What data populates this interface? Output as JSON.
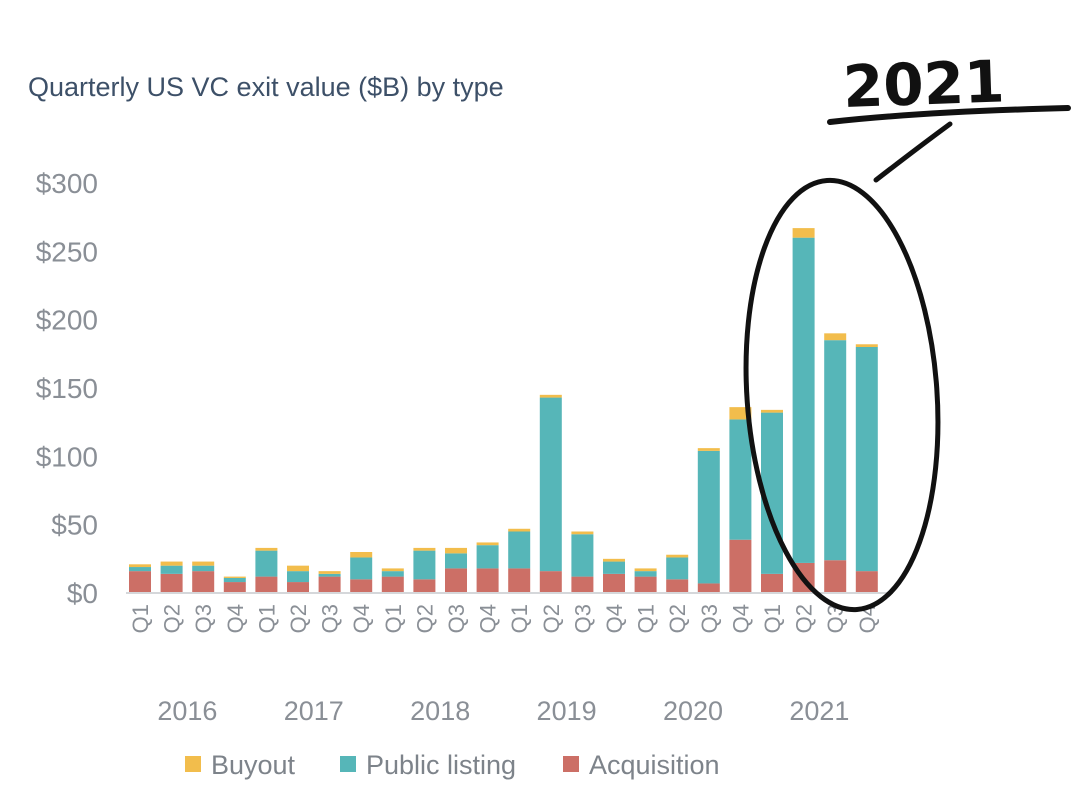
{
  "chart_data": {
    "type": "bar",
    "stacked": true,
    "title": "Quarterly US VC exit value ($B) by type",
    "ylim": [
      0,
      300
    ],
    "yticks": [
      0,
      50,
      100,
      150,
      200,
      250,
      300
    ],
    "ytick_labels": [
      "$0",
      "$50",
      "$100",
      "$150",
      "$200",
      "$250",
      "$300"
    ],
    "categories": [
      "Q1",
      "Q2",
      "Q3",
      "Q4",
      "Q1",
      "Q2",
      "Q3",
      "Q4",
      "Q1",
      "Q2",
      "Q3",
      "Q4",
      "Q1",
      "Q2",
      "Q3",
      "Q4",
      "Q1",
      "Q2",
      "Q3",
      "Q4",
      "Q1",
      "Q2",
      "Q3",
      "Q4"
    ],
    "years": [
      "2016",
      "2017",
      "2018",
      "2019",
      "2020",
      "2021"
    ],
    "series": [
      {
        "name": "Acquisition",
        "color": "#cc6f66",
        "values": [
          16,
          14,
          16,
          8,
          12,
          8,
          12,
          10,
          12,
          10,
          18,
          18,
          18,
          16,
          12,
          14,
          12,
          10,
          7,
          39,
          14,
          22,
          24,
          16
        ]
      },
      {
        "name": "Public listing",
        "color": "#56b6b8",
        "values": [
          3,
          6,
          4,
          3,
          19,
          8,
          2,
          16,
          4,
          21,
          11,
          17,
          27,
          127,
          31,
          9,
          4,
          16,
          97,
          88,
          118,
          238,
          161,
          164
        ]
      },
      {
        "name": "Buyout",
        "color": "#f2bd4c",
        "values": [
          2,
          3,
          3,
          1,
          2,
          4,
          2,
          4,
          2,
          2,
          4,
          2,
          2,
          2,
          2,
          2,
          2,
          2,
          2,
          9,
          2,
          7,
          5,
          2
        ]
      }
    ],
    "legend": {
      "position": "bottom",
      "items": [
        "Buyout",
        "Public listing",
        "Acquisition"
      ]
    },
    "axis_color": "#d5d7da",
    "annotation": {
      "text": "2021",
      "type": "handwritten-circle",
      "target": "2021"
    }
  }
}
